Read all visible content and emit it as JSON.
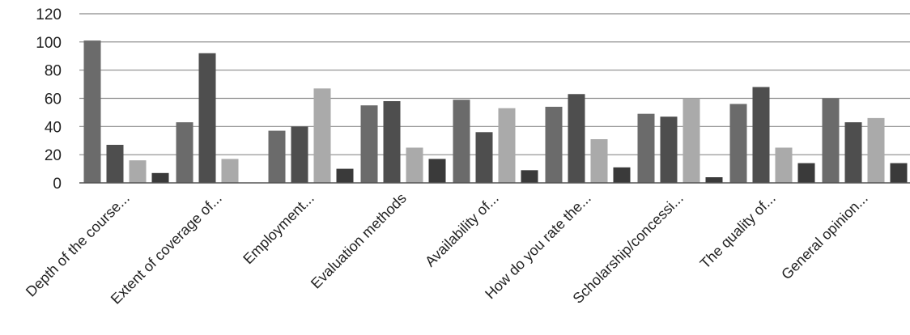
{
  "chart_data": {
    "type": "bar",
    "title": "",
    "xlabel": "",
    "ylabel": "",
    "ylim": [
      0,
      120
    ],
    "y_ticks": [
      0,
      20,
      40,
      60,
      80,
      100,
      120
    ],
    "grid": true,
    "legend": "none",
    "categories": [
      "Depth of the course...",
      "Extent of coverage of...",
      "Employment...",
      "Evaluation methods",
      "Availability of...",
      "How do you rate the...",
      "Scholarship/concessi...",
      "The quality of...",
      "General opinion..."
    ],
    "series": [
      {
        "color": "#6b6b6b",
        "values": [
          101,
          43,
          37,
          55,
          59,
          54,
          49,
          56,
          60
        ]
      },
      {
        "color": "#4e4e4e",
        "values": [
          27,
          92,
          40,
          58,
          36,
          63,
          47,
          68,
          43
        ]
      },
      {
        "color": "#aaaaaa",
        "values": [
          16,
          17,
          67,
          25,
          53,
          31,
          60,
          25,
          46
        ]
      },
      {
        "color": "#3a3a3a",
        "values": [
          7,
          0,
          10,
          17,
          9,
          11,
          4,
          14,
          14
        ]
      }
    ]
  }
}
